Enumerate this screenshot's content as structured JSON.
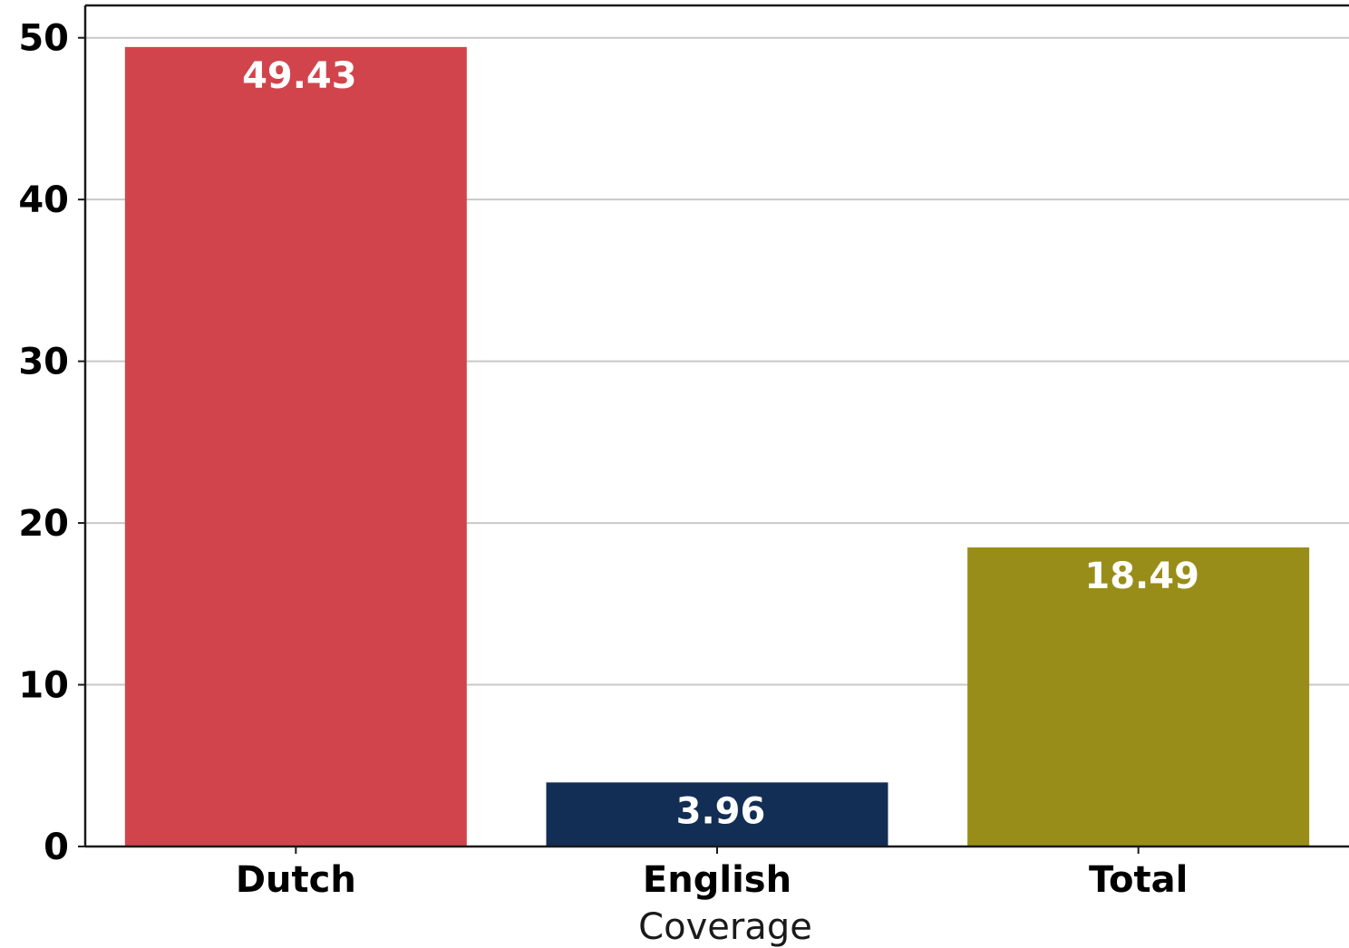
{
  "chart_data": {
    "type": "bar",
    "title": "",
    "xlabel": "Coverage",
    "ylabel": "",
    "categories": [
      "Dutch",
      "English",
      "Total"
    ],
    "values": [
      49.43,
      3.96,
      18.49
    ],
    "data_labels": [
      "49.43",
      "3.96",
      "18.49"
    ],
    "colors": [
      "#d1444c",
      "#132e55",
      "#998d19"
    ],
    "ylim": [
      0,
      52
    ],
    "yticks": [
      0,
      10,
      20,
      30,
      40,
      50
    ],
    "grid": "horizontal",
    "legend": "none"
  }
}
